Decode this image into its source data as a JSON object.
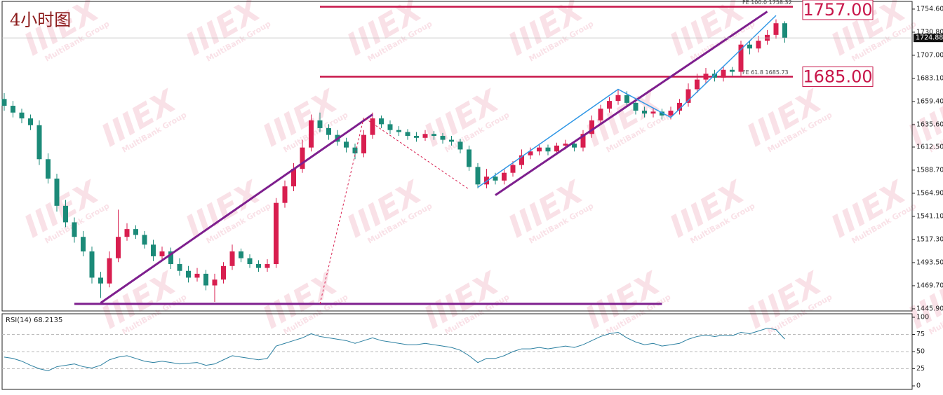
{
  "chart_data": {
    "type": "candlestick",
    "title": "4小时图",
    "open": [
      1662,
      1655,
      1648,
      1642,
      1635,
      1600,
      1580,
      1552,
      1535,
      1520,
      1505,
      1478,
      1472,
      1498,
      1520,
      1528,
      1522,
      1512,
      1500,
      1505,
      1492,
      1485,
      1478,
      1482,
      1470,
      1476,
      1490,
      1505,
      1498,
      1492,
      1488,
      1492,
      1555,
      1572,
      1590,
      1612,
      1640,
      1632,
      1625,
      1618,
      1612,
      1606,
      1625,
      1642,
      1636,
      1630,
      1628,
      1624,
      1622,
      1626,
      1624,
      1620,
      1618,
      1610,
      1592,
      1574,
      1582,
      1578,
      1586,
      1594,
      1604,
      1608,
      1612,
      1608,
      1614,
      1616,
      1612,
      1626,
      1640,
      1652,
      1660,
      1666,
      1658,
      1650,
      1647,
      1649,
      1645,
      1650,
      1658,
      1672,
      1682,
      1688,
      1684,
      1692,
      1690,
      1718,
      1714,
      1722,
      1728,
      1740
    ],
    "high": [
      1668,
      1660,
      1652,
      1646,
      1640,
      1606,
      1585,
      1558,
      1540,
      1526,
      1510,
      1484,
      1505,
      1548,
      1534,
      1532,
      1526,
      1517,
      1510,
      1509,
      1498,
      1490,
      1488,
      1486,
      1482,
      1494,
      1512,
      1508,
      1502,
      1496,
      1497,
      1560,
      1578,
      1596,
      1620,
      1646,
      1648,
      1636,
      1630,
      1622,
      1616,
      1630,
      1648,
      1645,
      1640,
      1634,
      1631,
      1628,
      1630,
      1629,
      1627,
      1624,
      1621,
      1614,
      1596,
      1590,
      1586,
      1590,
      1598,
      1610,
      1612,
      1616,
      1615,
      1617,
      1620,
      1619,
      1630,
      1645,
      1656,
      1664,
      1672,
      1670,
      1661,
      1654,
      1653,
      1652,
      1654,
      1662,
      1678,
      1688,
      1694,
      1692,
      1696,
      1695,
      1722,
      1722,
      1727,
      1733,
      1744,
      1742
    ],
    "low": [
      1650,
      1643,
      1637,
      1630,
      1594,
      1575,
      1546,
      1530,
      1514,
      1500,
      1472,
      1457,
      1468,
      1494,
      1516,
      1518,
      1508,
      1495,
      1496,
      1487,
      1480,
      1473,
      1474,
      1465,
      1453,
      1472,
      1486,
      1494,
      1488,
      1484,
      1484,
      1488,
      1550,
      1567,
      1586,
      1608,
      1628,
      1620,
      1614,
      1607,
      1600,
      1602,
      1621,
      1632,
      1626,
      1624,
      1620,
      1618,
      1619,
      1620,
      1616,
      1614,
      1606,
      1588,
      1570,
      1570,
      1574,
      1574,
      1582,
      1590,
      1600,
      1604,
      1604,
      1605,
      1610,
      1608,
      1608,
      1622,
      1636,
      1648,
      1656,
      1654,
      1646,
      1643,
      1643,
      1641,
      1641,
      1646,
      1654,
      1668,
      1678,
      1680,
      1680,
      1686,
      1686,
      1708,
      1710,
      1718,
      1724,
      1720
    ],
    "close": [
      1655,
      1648,
      1642,
      1635,
      1600,
      1580,
      1552,
      1535,
      1520,
      1505,
      1478,
      1472,
      1498,
      1520,
      1528,
      1522,
      1512,
      1500,
      1505,
      1492,
      1485,
      1478,
      1482,
      1470,
      1476,
      1490,
      1505,
      1498,
      1492,
      1488,
      1492,
      1555,
      1572,
      1590,
      1612,
      1640,
      1632,
      1625,
      1618,
      1612,
      1606,
      1625,
      1642,
      1636,
      1630,
      1628,
      1624,
      1622,
      1626,
      1624,
      1620,
      1618,
      1610,
      1592,
      1574,
      1582,
      1578,
      1586,
      1594,
      1604,
      1608,
      1612,
      1608,
      1614,
      1616,
      1612,
      1626,
      1640,
      1652,
      1660,
      1666,
      1658,
      1650,
      1647,
      1649,
      1645,
      1650,
      1658,
      1672,
      1682,
      1688,
      1684,
      1692,
      1690,
      1718,
      1714,
      1722,
      1728,
      1740,
      1725
    ],
    "up_color": "#d81e4f",
    "down_color": "#1b8a78",
    "ylim": [
      1443.7,
      1762.5
    ],
    "yticks": [
      {
        "value": 1754.6,
        "label": "1754.60"
      },
      {
        "value": 1730.8,
        "label": "1730.80"
      },
      {
        "value": 1707,
        "label": "1707.00"
      },
      {
        "value": 1683.1,
        "label": "1683.10"
      },
      {
        "value": 1659.4,
        "label": "1659.40"
      },
      {
        "value": 1635.6,
        "label": "1635.60"
      },
      {
        "value": 1612.5,
        "label": "1612.50"
      },
      {
        "value": 1588.7,
        "label": "1588.70"
      },
      {
        "value": 1564.9,
        "label": "1564.90"
      },
      {
        "value": 1541.1,
        "label": "1541.10"
      },
      {
        "value": 1517.3,
        "label": "1517.30"
      },
      {
        "value": 1493.5,
        "label": "1493.50"
      },
      {
        "value": 1469.7,
        "label": "1469.70"
      },
      {
        "value": 1445.9,
        "label": "1445.90"
      }
    ],
    "last_price": 1724.88,
    "rsi": {
      "label": "RSI(14) 68.2135",
      "color": "#2a7fa0",
      "ylim": [
        -5.1,
        105.1
      ],
      "yticks": [
        100,
        75,
        50,
        25,
        0
      ],
      "values": [
        42,
        40,
        36,
        30,
        25,
        22,
        28,
        30,
        32,
        28,
        26,
        30,
        38,
        42,
        44,
        40,
        36,
        34,
        36,
        34,
        32,
        33,
        34,
        30,
        32,
        38,
        44,
        42,
        40,
        38,
        40,
        58,
        62,
        66,
        70,
        76,
        72,
        70,
        68,
        66,
        62,
        66,
        70,
        66,
        64,
        62,
        60,
        60,
        62,
        60,
        58,
        56,
        52,
        44,
        34,
        40,
        40,
        44,
        50,
        54,
        54,
        56,
        54,
        56,
        58,
        56,
        60,
        66,
        72,
        76,
        78,
        70,
        64,
        60,
        62,
        58,
        60,
        62,
        68,
        72,
        74,
        72,
        74,
        73,
        78,
        76,
        80,
        84,
        82,
        68.2135
      ]
    },
    "drawings": [
      {
        "color": "#7e1f8e",
        "width": 3,
        "dash": false,
        "x": [
          11,
          42
        ],
        "y": [
          1452,
          1646
        ]
      },
      {
        "color": "#7e1f8e",
        "width": 3,
        "dash": false,
        "x": [
          56,
          87
        ],
        "y": [
          1563,
          1752
        ]
      },
      {
        "color": "#7e1f8e",
        "width": 3,
        "dash": false,
        "x": [
          8,
          75
        ],
        "y": [
          1451,
          1451
        ]
      },
      {
        "color": "#3399e6",
        "width": 1.5,
        "dash": false,
        "x": [
          54,
          70,
          76,
          88
        ],
        "y": [
          1571,
          1672,
          1643,
          1748
        ]
      },
      {
        "color": "#d81e4f",
        "width": 1,
        "dash": true,
        "x": [
          36,
          41,
          53
        ],
        "y": [
          1451,
          1643,
          1569
        ]
      }
    ],
    "levels": [
      {
        "value": 1757,
        "label": "1757.00",
        "note": "FE 100.0 1758.32",
        "color": "#c8164a",
        "x": [
          36,
          90
        ]
      },
      {
        "value": 1685,
        "label": "1685.00",
        "note": "FE 61.8 1685.73",
        "color": "#c8164a",
        "x": [
          36,
          90
        ]
      }
    ]
  },
  "watermark": {
    "logo": "IIIEX",
    "text": "MultiBank Group"
  }
}
